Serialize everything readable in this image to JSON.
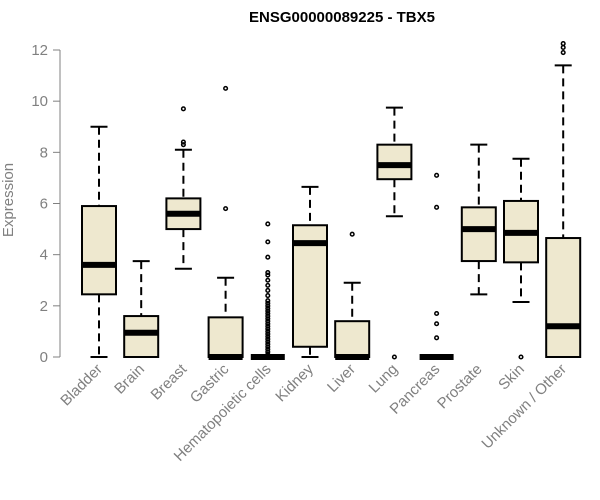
{
  "chart_data": {
    "type": "boxplot",
    "title": "ENSG00000089225 - TBX5",
    "ylabel": "Expression",
    "xlabel": "",
    "ylim": [
      0,
      12
    ],
    "yticks": [
      0,
      2,
      4,
      6,
      8,
      10,
      12
    ],
    "grid": false,
    "legend": "none",
    "box_color": "#EEE8CF",
    "line_color": "#000000",
    "categories": [
      "Bladder",
      "Brain",
      "Breast",
      "Gastric",
      "Hematopoietic cells",
      "Kidney",
      "Liver",
      "Lung",
      "Pancreas",
      "Prostate",
      "Skin",
      "Unknown / Other"
    ],
    "boxes": [
      {
        "category": "Bladder",
        "whisker_low": 0.0,
        "q1": 2.45,
        "median": 3.6,
        "q3": 5.9,
        "whisker_high": 9.0,
        "outliers": []
      },
      {
        "category": "Brain",
        "whisker_low": 0.0,
        "q1": 0.0,
        "median": 0.95,
        "q3": 1.6,
        "whisker_high": 3.75,
        "outliers": []
      },
      {
        "category": "Breast",
        "whisker_low": 3.45,
        "q1": 5.0,
        "median": 5.6,
        "q3": 6.2,
        "whisker_high": 8.1,
        "outliers": [
          8.3,
          8.4,
          9.7
        ]
      },
      {
        "category": "Gastric",
        "whisker_low": 0.0,
        "q1": 0.0,
        "median": 0.0,
        "q3": 1.55,
        "whisker_high": 3.1,
        "outliers": [
          5.8,
          10.5
        ]
      },
      {
        "category": "Hematopoietic cells",
        "whisker_low": 0.0,
        "q1": 0.0,
        "median": 0.0,
        "q3": 0.0,
        "whisker_high": 0.0,
        "outliers": [
          0.1,
          0.2,
          0.3,
          0.4,
          0.5,
          0.6,
          0.7,
          0.8,
          0.9,
          1.0,
          1.1,
          1.2,
          1.3,
          1.4,
          1.5,
          1.6,
          1.7,
          1.8,
          1.9,
          2.0,
          2.1,
          2.2,
          2.4,
          2.6,
          2.8,
          3.0,
          3.2,
          3.3,
          3.9,
          4.5,
          5.2
        ]
      },
      {
        "category": "Kidney",
        "whisker_low": 0.0,
        "q1": 0.4,
        "median": 4.45,
        "q3": 5.15,
        "whisker_high": 6.65,
        "outliers": []
      },
      {
        "category": "Liver",
        "whisker_low": 0.0,
        "q1": 0.0,
        "median": 0.0,
        "q3": 1.4,
        "whisker_high": 2.9,
        "outliers": [
          4.8
        ]
      },
      {
        "category": "Lung",
        "whisker_low": 5.5,
        "q1": 6.95,
        "median": 7.5,
        "q3": 8.3,
        "whisker_high": 9.75,
        "outliers": [
          0.0
        ]
      },
      {
        "category": "Pancreas",
        "whisker_low": 0.0,
        "q1": 0.0,
        "median": 0.0,
        "q3": 0.0,
        "whisker_high": 0.0,
        "outliers": [
          0.75,
          1.3,
          1.7,
          5.85,
          7.1
        ]
      },
      {
        "category": "Prostate",
        "whisker_low": 2.45,
        "q1": 3.75,
        "median": 5.0,
        "q3": 5.85,
        "whisker_high": 8.3,
        "outliers": []
      },
      {
        "category": "Skin",
        "whisker_low": 2.15,
        "q1": 3.7,
        "median": 4.85,
        "q3": 6.1,
        "whisker_high": 7.75,
        "outliers": [
          0.0
        ]
      },
      {
        "category": "Unknown / Other",
        "whisker_low": 0.0,
        "q1": 0.0,
        "median": 1.2,
        "q3": 4.65,
        "whisker_high": 11.4,
        "outliers": [
          11.9,
          12.1,
          12.25
        ]
      }
    ]
  }
}
